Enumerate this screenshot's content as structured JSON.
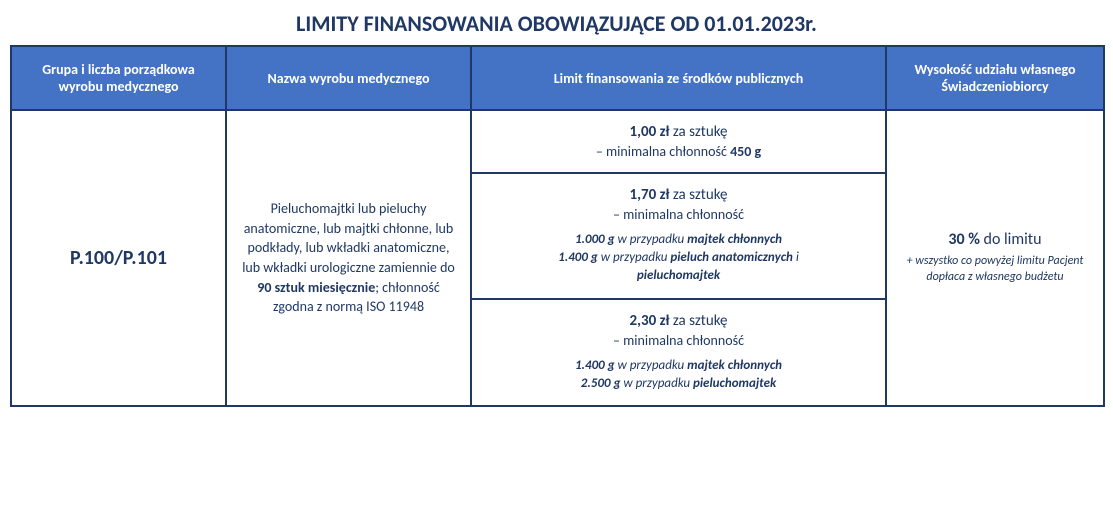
{
  "title": "LIMITY FINANSOWANIA OBOWIĄZUJĄCE OD 01.01.2023r.",
  "colors": {
    "header_bg": "#4472c4",
    "header_text": "#ffffff",
    "border": "#1f3864",
    "text": "#1f3864",
    "bg": "#ffffff"
  },
  "headers": {
    "col1": "Grupa i liczba porządkowa wyrobu medycznego",
    "col2": "Nazwa wyrobu medycznego",
    "col3": "Limit finansowania ze środków publicznych",
    "col4": "Wysokość udziału własnego Świadczeniobiorcy"
  },
  "row": {
    "code": "P.100/P.101",
    "product": {
      "prefix": "Pieluchomajtki lub pieluchy anatomiczne, lub majtki chłonne, lub podkłady, lub wkładki anatomiczne, lub wkładki urologiczne zamiennie do ",
      "qty": "90 sztuk miesięcznie",
      "suffix": "; chłonność zgodna z normą ISO 11948"
    },
    "limits": [
      {
        "price": "1,00 zł",
        "per": " za sztukę",
        "sub_prefix": "– minimalna chłonność ",
        "sub_bold": "450 g",
        "details": []
      },
      {
        "price": "1,70 zł",
        "per": " za sztukę",
        "sub_prefix": "– minimalna chłonność",
        "sub_bold": "",
        "details": [
          {
            "g": "1.000 g",
            "mid": " w przypadku ",
            "b": "majtek chłonnych",
            "tail": ""
          },
          {
            "g": "1.400 g",
            "mid": " w przypadku ",
            "b": "pieluch anatomicznych",
            "tail": " i "
          },
          {
            "g": "",
            "mid": "",
            "b": "pieluchomajtek",
            "tail": ""
          }
        ]
      },
      {
        "price": "2,30 zł",
        "per": " za sztukę",
        "sub_prefix": "– minimalna chłonność",
        "sub_bold": "",
        "details": [
          {
            "g": "2.500 g",
            "mid": " w przypadku ",
            "b": "pieluchomajtek",
            "tail": ""
          }
        ],
        "details_pre": [
          {
            "g": "1.400 g",
            "mid": " w przypadku ",
            "b": "majtek chłonnych",
            "tail": ""
          }
        ]
      }
    ],
    "share": {
      "pct": "30 %",
      "pct_suffix": " do limitu",
      "note": "+ wszystko co powyżej limitu Pacjent dopłaca z własnego budżetu"
    }
  }
}
